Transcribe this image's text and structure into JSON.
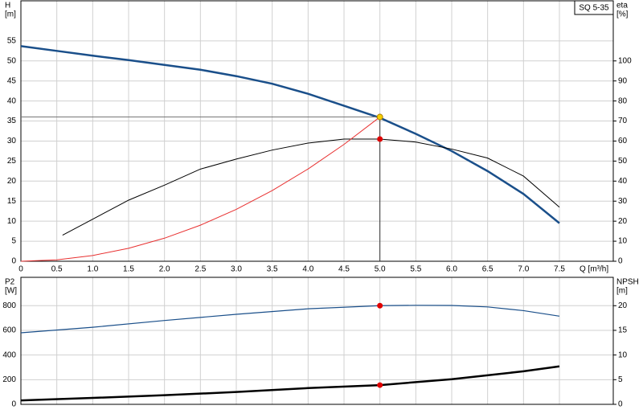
{
  "chart_data": [
    {
      "type": "line",
      "annotation": "SQ 5-35",
      "ylabel": "H",
      "yunit": "[m]",
      "y2label": "eta",
      "y2unit": "[%]",
      "xlabel": "Q [m³/h]",
      "xlim": [
        0,
        8.25
      ],
      "ylim": [
        0,
        65
      ],
      "y2lim": [
        0,
        130
      ],
      "grid": true,
      "xticks": [
        0,
        0.5,
        {
          "value": 1,
          "label": "1.0"
        },
        1.5,
        {
          "value": 2,
          "label": "2.0"
        },
        2.5,
        {
          "value": 3,
          "label": "3.0"
        },
        3.5,
        {
          "value": 4,
          "label": "4.0"
        },
        4.5,
        {
          "value": 5,
          "label": "5.0"
        },
        5.5,
        {
          "value": 6,
          "label": "6.0"
        },
        6.5,
        {
          "value": 7,
          "label": "7.0"
        },
        7.5
      ],
      "yticks": [
        0,
        5,
        10,
        15,
        20,
        25,
        30,
        35,
        40,
        45,
        50,
        55
      ],
      "y2ticks": [
        0,
        10,
        20,
        30,
        40,
        50,
        60,
        70,
        80,
        90,
        100
      ],
      "series": [
        {
          "color": "#1a4f8a",
          "width": 2.5,
          "x": [
            0,
            0.5,
            1,
            1.5,
            2,
            2.5,
            3,
            3.5,
            4,
            4.5,
            5,
            5.5,
            6,
            6.5,
            7,
            7.5
          ],
          "values": [
            53.7,
            52.5,
            51.3,
            50.2,
            49,
            47.8,
            46.2,
            44.3,
            41.8,
            38.8,
            35.8,
            31.8,
            27.5,
            22.5,
            16.8,
            9.5
          ]
        },
        {
          "color": "#000000",
          "width": 1,
          "axis": "y2",
          "x": [
            0.58,
            1,
            1.5,
            2,
            2.5,
            3,
            3.5,
            4,
            4.5,
            5,
            5.5,
            6,
            6.5,
            7,
            7.5
          ],
          "values": [
            13,
            21,
            30.5,
            38,
            46,
            51,
            55.5,
            59,
            61,
            61,
            59.5,
            56,
            51.5,
            42.5,
            27
          ]
        },
        {
          "color": "#e83030",
          "width": 1,
          "x": [
            0,
            0.5,
            1,
            1.5,
            2,
            2.5,
            3,
            3.5,
            4,
            4.5,
            5
          ],
          "values": [
            0,
            0.36,
            1.44,
            3.24,
            5.76,
            9,
            12.96,
            17.64,
            23.04,
            29.16,
            36
          ]
        }
      ],
      "markers": [
        {
          "x": 5,
          "y": 36,
          "color": "#f5d000",
          "guides": true
        },
        {
          "x": 5,
          "y": 61,
          "color": "#e00000",
          "axis": "y2"
        }
      ]
    },
    {
      "type": "line",
      "ylabel": "P2",
      "yunit": "[W]",
      "y2label": "NPSH",
      "y2unit": "[m]",
      "xlim": [
        0,
        8.25
      ],
      "ylim": [
        0,
        1030
      ],
      "y2lim": [
        0,
        25.75
      ],
      "grid": true,
      "xticks": [
        0,
        0.5,
        1,
        1.5,
        2,
        2.5,
        3,
        3.5,
        4,
        4.5,
        5,
        5.5,
        6,
        6.5,
        7,
        7.5
      ],
      "yticks": [
        0,
        200,
        400,
        600,
        800
      ],
      "y2ticks": [
        0,
        5,
        10,
        15,
        20
      ],
      "series": [
        {
          "color": "#1a4f8a",
          "width": 1.2,
          "x": [
            0,
            1,
            2,
            3,
            4,
            5,
            5.5,
            6,
            6.5,
            7,
            7.5
          ],
          "values": [
            580,
            625,
            680,
            730,
            775,
            800,
            803,
            802,
            790,
            760,
            715
          ]
        },
        {
          "color": "#000000",
          "width": 2.5,
          "axis": "y2",
          "x": [
            0,
            1,
            2,
            3,
            4,
            5,
            6,
            7,
            7.5
          ],
          "values": [
            0.8,
            1.3,
            1.85,
            2.5,
            3.3,
            3.9,
            5.1,
            6.7,
            7.7
          ]
        }
      ],
      "markers": [
        {
          "x": 5,
          "y": 800,
          "color": "#e00000"
        },
        {
          "x": 5,
          "y": 3.9,
          "color": "#e00000",
          "axis": "y2"
        }
      ]
    }
  ]
}
